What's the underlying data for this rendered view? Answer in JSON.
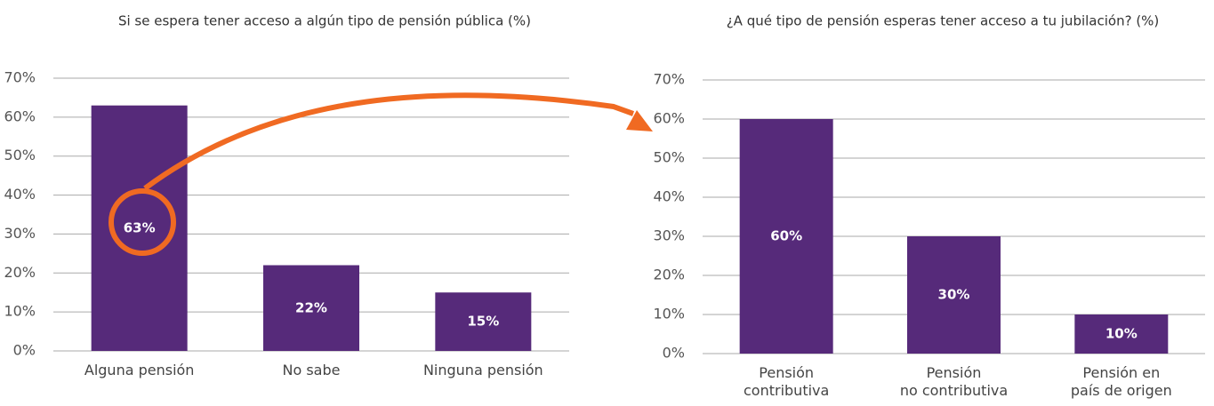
{
  "chart_data": [
    {
      "type": "bar",
      "title": "Si se espera tener acceso a algún tipo de pensión pública (%)",
      "categories": [
        "Alguna pensión",
        "No sabe",
        "Ninguna pensión"
      ],
      "values": [
        63,
        22,
        15
      ],
      "value_labels": [
        "63%",
        "22%",
        "15%"
      ],
      "color": "#562a7a",
      "ylim": [
        0,
        70
      ],
      "yticks": [
        {
          "value": 0,
          "label": "0%"
        },
        {
          "value": 10,
          "label": "10%"
        },
        {
          "value": 20,
          "label": "20%"
        },
        {
          "value": 30,
          "label": "30%"
        },
        {
          "value": 40,
          "label": "40%"
        },
        {
          "value": 50,
          "label": "50%"
        },
        {
          "value": 60,
          "label": "60%"
        },
        {
          "value": 70,
          "label": "70%"
        }
      ],
      "grid": true
    },
    {
      "type": "bar",
      "title": "¿A qué tipo de pensión esperas tener acceso a tu jubilación? (%)",
      "categories": [
        "Pensión\ncontributiva",
        "Pensión\nno contributiva",
        "Pensión en\npaís de origen"
      ],
      "values": [
        60,
        30,
        10
      ],
      "value_labels": [
        "60%",
        "30%",
        "10%"
      ],
      "color": "#562a7a",
      "ylim": [
        0,
        70
      ],
      "yticks": [
        {
          "value": 0,
          "label": "0%"
        },
        {
          "value": 10,
          "label": "10%"
        },
        {
          "value": 20,
          "label": "20%"
        },
        {
          "value": 30,
          "label": "30%"
        },
        {
          "value": 40,
          "label": "40%"
        },
        {
          "value": 50,
          "label": "50%"
        },
        {
          "value": 60,
          "label": "60%"
        },
        {
          "value": 70,
          "label": "70%"
        }
      ],
      "grid": true
    }
  ]
}
